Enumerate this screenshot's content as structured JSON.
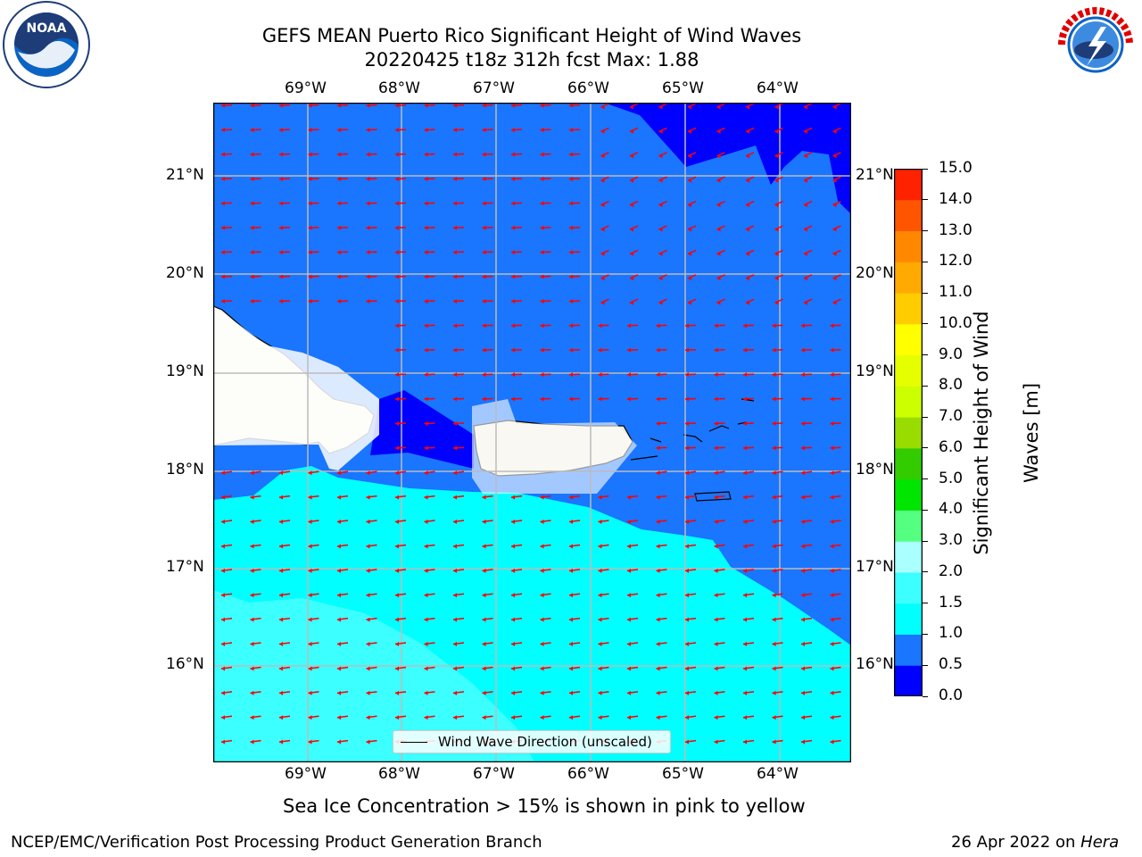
{
  "title": {
    "line1": "GEFS MEAN Puerto Rico Significant Height of Wind Waves",
    "line2": "20220425 t18z 312h fcst   Max: 1.88"
  },
  "axes": {
    "lon_labels": [
      "69°W",
      "68°W",
      "67°W",
      "66°W",
      "65°W",
      "64°W"
    ],
    "lat_labels": [
      "21°N",
      "20°N",
      "19°N",
      "18°N",
      "17°N",
      "16°N"
    ]
  },
  "legend": {
    "label": "Wind Wave Direction (unscaled)",
    "color": "#ff0000"
  },
  "colorbar": {
    "title_line1": "Significant Height of Wind",
    "title_line2": "Waves [m]",
    "tick_labels": [
      "0.0",
      "0.5",
      "1.0",
      "1.5",
      "2.0",
      "3.0",
      "4.0",
      "5.0",
      "6.0",
      "7.0",
      "8.0",
      "9.0",
      "10.0",
      "11.0",
      "12.0",
      "13.0",
      "14.0",
      "15.0"
    ],
    "colors": [
      "#0000ff",
      "#1a75ff",
      "#00ffff",
      "#3cffff",
      "#aaffff",
      "#55ff7f",
      "#00e600",
      "#33cc00",
      "#99dd00",
      "#ccff00",
      "#e6ff00",
      "#ffff00",
      "#ffcc00",
      "#ffaa00",
      "#ff8800",
      "#ff5500",
      "#ff2200"
    ]
  },
  "map": {
    "land_color": "#efedde",
    "wave_colors": {
      "low": "#0000ff",
      "mid": "#1a75ff",
      "high": "#00ffff",
      "higher": "#3cffff"
    },
    "arrow_color": "#ff0000"
  },
  "caption": "Sea Ice Concentration > 15% is shown in pink to yellow",
  "footer": {
    "left": "NCEP/EMC/Verification Post Processing Product Generation Branch",
    "right_prefix": "26 Apr 2022 on ",
    "right_host": "Hera"
  },
  "logos": {
    "left": "NOAA",
    "right": "NATIONAL WEATHER SERVICE"
  }
}
